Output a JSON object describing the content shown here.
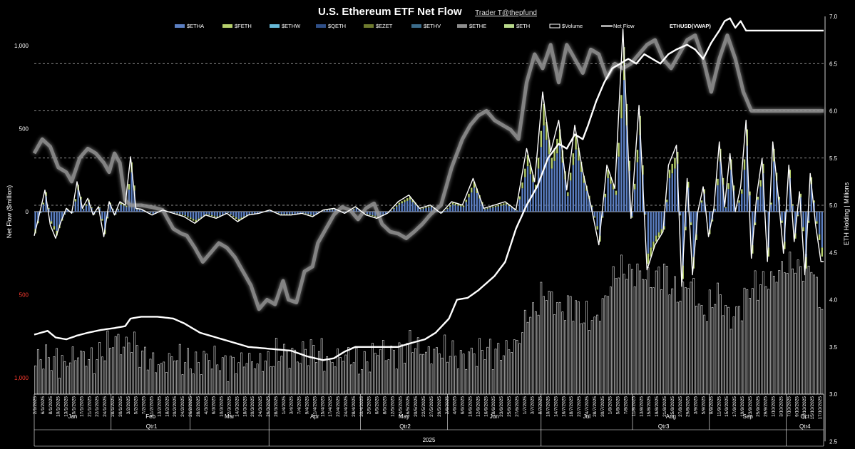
{
  "header": {
    "title": "U.S. Ethereum ETF Net Flow",
    "credit": "Trader T@thepfund"
  },
  "colors": {
    "background": "#000000",
    "etha": "#5b7fc2",
    "feth": "#b5cf6b",
    "ethw": "#66b8d6",
    "qeth": "#2f4f87",
    "ezet": "#6e7a2e",
    "ethv": "#3b6b8a",
    "ethe": "#8c8c8c",
    "eth": "#b8d88a",
    "volume": "#ffffff",
    "netflow": "#ffffff",
    "ethusd": "#aaaaaa"
  },
  "chart_data": {
    "type": "bar",
    "title": "U.S. Ethereum ETF Net Flow",
    "ylabel_left": "Net Flow ($million)",
    "ylabel_right": "ETH Holding | Millions",
    "left_ticks": [
      "1,000",
      "500",
      "0",
      "500",
      "1,000"
    ],
    "left_tick_values": [
      1000,
      500,
      0,
      -500,
      -1000
    ],
    "left_ylim": [
      -1000,
      1000
    ],
    "right_ticks": [
      "7.0",
      "6.5",
      "6.0",
      "5.5",
      "5.0",
      "4.5",
      "4.0",
      "3.5",
      "3.0",
      "2.5"
    ],
    "right_tick_values": [
      7.0,
      6.5,
      6.0,
      5.5,
      5.0,
      4.5,
      4.0,
      3.5,
      3.0,
      2.5
    ],
    "right_ylim": [
      2.5,
      7.0
    ],
    "legend_position": "top",
    "legend": [
      {
        "name": "$ETHA",
        "kind": "bar",
        "color": "#5b7fc2"
      },
      {
        "name": "$FETH",
        "kind": "bar",
        "color": "#b5cf6b"
      },
      {
        "name": "$ETHW",
        "kind": "bar",
        "color": "#66b8d6"
      },
      {
        "name": "$QETH",
        "kind": "bar",
        "color": "#2f4f87"
      },
      {
        "name": "$EZET",
        "kind": "bar",
        "color": "#6e7a2e"
      },
      {
        "name": "$ETHV",
        "kind": "bar",
        "color": "#3b6b8a"
      },
      {
        "name": "$ETHE",
        "kind": "bar",
        "color": "#8c8c8c"
      },
      {
        "name": "$ETH",
        "kind": "bar",
        "color": "#b8d88a"
      },
      {
        "name": "$Volume",
        "kind": "box",
        "color": "#ffffff"
      },
      {
        "name": "Net Flow",
        "kind": "line",
        "color": "#ffffff"
      },
      {
        "name": "ETHUSD(VWAP)",
        "kind": "glow",
        "color": "#aaaaaa"
      }
    ],
    "x_tick_labels": [
      "2/1/2025",
      "6/1/2025",
      "8/1/2025",
      "10/1/2025",
      "13/1/2025",
      "15/1/2025",
      "17/1/2025",
      "21/1/2025",
      "22/1/2025",
      "24/1/2025",
      "28/1/2025",
      "30/1/2025",
      "3/2/2025",
      "5/2/2025",
      "7/2/2025",
      "11/2/2025",
      "13/2/2025",
      "18/2/2025",
      "20/2/2025",
      "24/2/2025",
      "26/2/2025",
      "28/2/2025",
      "4/3/2025",
      "6/3/2025",
      "10/3/2025",
      "12/3/2025",
      "14/3/2025",
      "18/3/2025",
      "20/3/2025",
      "24/3/2025",
      "26/3/2025",
      "28/3/2025",
      "1/4/2025",
      "3/4/2025",
      "7/4/2025",
      "9/4/2025",
      "11/4/2025",
      "15/4/2025",
      "17/4/2025",
      "22/4/2025",
      "24/4/2025",
      "28/4/2025",
      "30/4/2025",
      "2/5/2025",
      "6/5/2025",
      "8/5/2025",
      "12/5/2025",
      "14/5/2025",
      "16/5/2025",
      "20/5/2025",
      "22/5/2025",
      "27/5/2025",
      "29/5/2025",
      "2/6/2025",
      "4/6/2025",
      "6/6/2025",
      "10/6/2025",
      "12/6/2025",
      "16/6/2025",
      "18/6/2025",
      "23/6/2025",
      "25/6/2025",
      "27/6/2025",
      "1/7/2025",
      "3/7/2025",
      "8/7/2025",
      "10/7/2025",
      "14/7/2025",
      "16/7/2025",
      "18/7/2025",
      "22/7/2025",
      "24/7/2025",
      "28/7/2025",
      "30/7/2025",
      "1/8/2025",
      "5/8/2025",
      "7/8/2025",
      "11/8/2025",
      "13/8/2025",
      "15/8/2025",
      "19/8/2025",
      "21/8/2025",
      "25/8/2025",
      "27/8/2025",
      "29/8/2025",
      "3/9/2025",
      "5/9/2025",
      "9/9/2025",
      "11/9/2025",
      "15/9/2025",
      "17/9/2025",
      "19/9/2025",
      "23/9/2025",
      "25/9/2025",
      "29/9/2025",
      "1/10/2025",
      "3/10/2025",
      "7/10/2025",
      "9/10/2025",
      "13/10/2025",
      "15/10/2025",
      "17/10/2025"
    ],
    "months": [
      "Jan",
      "Feb",
      "Mar",
      "Apr",
      "May",
      "Jun",
      "Jul",
      "Aug",
      "Sep",
      "Oct"
    ],
    "quarters": [
      "Qtr1",
      "Qtr2",
      "Qtr3",
      "Qtr4"
    ],
    "year": "2025",
    "eth_usd_vwap_millions_axis": [
      [
        0,
        5.55
      ],
      [
        3,
        5.7
      ],
      [
        6,
        5.62
      ],
      [
        9,
        5.4
      ],
      [
        12,
        5.35
      ],
      [
        14,
        5.25
      ],
      [
        17,
        5.5
      ],
      [
        20,
        5.6
      ],
      [
        23,
        5.55
      ],
      [
        26,
        5.45
      ],
      [
        28,
        5.35
      ],
      [
        30,
        5.55
      ],
      [
        32,
        5.45
      ],
      [
        34,
        5.05
      ],
      [
        36,
        5.0
      ],
      [
        40,
        5.0
      ],
      [
        44,
        4.98
      ],
      [
        48,
        4.95
      ],
      [
        52,
        4.75
      ],
      [
        55,
        4.7
      ],
      [
        57,
        4.68
      ],
      [
        60,
        4.55
      ],
      [
        63,
        4.4
      ],
      [
        66,
        4.5
      ],
      [
        69,
        4.6
      ],
      [
        72,
        4.55
      ],
      [
        75,
        4.45
      ],
      [
        78,
        4.3
      ],
      [
        81,
        4.15
      ],
      [
        84,
        3.9
      ],
      [
        87,
        4.0
      ],
      [
        90,
        3.95
      ],
      [
        93,
        4.2
      ],
      [
        95,
        4.0
      ],
      [
        98,
        3.97
      ],
      [
        101,
        4.3
      ],
      [
        104,
        4.35
      ],
      [
        106,
        4.6
      ],
      [
        109,
        4.75
      ],
      [
        112,
        4.9
      ],
      [
        115,
        4.98
      ],
      [
        118,
        4.95
      ],
      [
        121,
        4.85
      ],
      [
        124,
        4.97
      ],
      [
        127,
        5.02
      ],
      [
        130,
        4.8
      ],
      [
        133,
        4.72
      ],
      [
        136,
        4.7
      ],
      [
        139,
        4.65
      ],
      [
        142,
        4.72
      ],
      [
        145,
        4.8
      ],
      [
        148,
        4.9
      ],
      [
        152,
        5.0
      ],
      [
        156,
        5.4
      ],
      [
        160,
        5.7
      ],
      [
        163,
        5.85
      ],
      [
        166,
        5.95
      ],
      [
        169,
        6.0
      ],
      [
        172,
        5.9
      ],
      [
        175,
        5.85
      ],
      [
        178,
        5.8
      ],
      [
        181,
        5.7
      ],
      [
        184,
        6.3
      ],
      [
        187,
        6.6
      ],
      [
        190,
        6.45
      ],
      [
        193,
        6.7
      ],
      [
        196,
        6.3
      ],
      [
        199,
        6.7
      ],
      [
        202,
        6.55
      ],
      [
        205,
        6.4
      ],
      [
        208,
        6.65
      ],
      [
        211,
        6.6
      ],
      [
        214,
        6.35
      ],
      [
        217,
        6.5
      ],
      [
        220,
        6.45
      ],
      [
        223,
        6.5
      ],
      [
        226,
        6.6
      ],
      [
        229,
        6.7
      ],
      [
        232,
        6.75
      ],
      [
        235,
        6.55
      ],
      [
        238,
        6.45
      ],
      [
        241,
        6.6
      ],
      [
        244,
        6.75
      ],
      [
        247,
        6.8
      ],
      [
        250,
        6.55
      ],
      [
        253,
        6.2
      ],
      [
        256,
        6.55
      ],
      [
        259,
        6.8
      ],
      [
        262,
        6.55
      ],
      [
        265,
        6.2
      ],
      [
        268,
        6.0
      ]
    ],
    "eth_holding_millions": [
      [
        0,
        3.63
      ],
      [
        5,
        3.67
      ],
      [
        8,
        3.6
      ],
      [
        12,
        3.58
      ],
      [
        16,
        3.62
      ],
      [
        20,
        3.65
      ],
      [
        25,
        3.68
      ],
      [
        30,
        3.7
      ],
      [
        34,
        3.72
      ],
      [
        36,
        3.8
      ],
      [
        40,
        3.82
      ],
      [
        46,
        3.82
      ],
      [
        52,
        3.8
      ],
      [
        56,
        3.75
      ],
      [
        62,
        3.65
      ],
      [
        68,
        3.6
      ],
      [
        74,
        3.55
      ],
      [
        80,
        3.5
      ],
      [
        88,
        3.48
      ],
      [
        96,
        3.46
      ],
      [
        102,
        3.4
      ],
      [
        108,
        3.36
      ],
      [
        112,
        3.38
      ],
      [
        116,
        3.45
      ],
      [
        120,
        3.5
      ],
      [
        128,
        3.5
      ],
      [
        136,
        3.5
      ],
      [
        142,
        3.55
      ],
      [
        146,
        3.58
      ],
      [
        150,
        3.65
      ],
      [
        155,
        3.8
      ],
      [
        158,
        4.0
      ],
      [
        162,
        4.02
      ],
      [
        166,
        4.1
      ],
      [
        170,
        4.2
      ],
      [
        172,
        4.25
      ],
      [
        176,
        4.4
      ],
      [
        180,
        4.75
      ],
      [
        184,
        5.0
      ],
      [
        188,
        5.2
      ],
      [
        192,
        5.5
      ],
      [
        196,
        5.65
      ],
      [
        199,
        5.6
      ],
      [
        202,
        5.75
      ],
      [
        205,
        5.7
      ],
      [
        207,
        5.85
      ],
      [
        210,
        6.1
      ],
      [
        213,
        6.3
      ],
      [
        216,
        6.45
      ],
      [
        219,
        6.5
      ],
      [
        222,
        6.55
      ],
      [
        225,
        6.5
      ],
      [
        228,
        6.6
      ],
      [
        231,
        6.55
      ],
      [
        234,
        6.5
      ],
      [
        237,
        6.6
      ],
      [
        240,
        6.65
      ],
      [
        244,
        6.7
      ],
      [
        247,
        6.65
      ],
      [
        250,
        6.55
      ],
      [
        253,
        6.72
      ],
      [
        256,
        6.85
      ],
      [
        258,
        6.95
      ],
      [
        260,
        6.98
      ],
      [
        262,
        6.88
      ],
      [
        264,
        6.95
      ],
      [
        266,
        6.85
      ]
    ],
    "net_flow_million": [
      [
        0,
        -145
      ],
      [
        2,
        -10
      ],
      [
        4,
        130
      ],
      [
        6,
        -80
      ],
      [
        8,
        -160
      ],
      [
        10,
        -60
      ],
      [
        12,
        20
      ],
      [
        14,
        -10
      ],
      [
        16,
        180
      ],
      [
        18,
        20
      ],
      [
        20,
        80
      ],
      [
        22,
        -20
      ],
      [
        24,
        30
      ],
      [
        26,
        -150
      ],
      [
        28,
        60
      ],
      [
        30,
        -20
      ],
      [
        32,
        60
      ],
      [
        34,
        40
      ],
      [
        36,
        330
      ],
      [
        38,
        20
      ],
      [
        40,
        15
      ],
      [
        44,
        -20
      ],
      [
        48,
        10
      ],
      [
        52,
        -10
      ],
      [
        56,
        -30
      ],
      [
        60,
        -70
      ],
      [
        64,
        -20
      ],
      [
        68,
        -40
      ],
      [
        72,
        -10
      ],
      [
        76,
        -60
      ],
      [
        80,
        -20
      ],
      [
        84,
        -10
      ],
      [
        88,
        10
      ],
      [
        92,
        -20
      ],
      [
        96,
        -20
      ],
      [
        100,
        -10
      ],
      [
        104,
        -30
      ],
      [
        108,
        10
      ],
      [
        112,
        20
      ],
      [
        116,
        -10
      ],
      [
        120,
        30
      ],
      [
        124,
        -20
      ],
      [
        128,
        -40
      ],
      [
        132,
        -10
      ],
      [
        136,
        60
      ],
      [
        140,
        100
      ],
      [
        144,
        20
      ],
      [
        148,
        40
      ],
      [
        152,
        -10
      ],
      [
        156,
        60
      ],
      [
        160,
        40
      ],
      [
        164,
        200
      ],
      [
        168,
        20
      ],
      [
        172,
        40
      ],
      [
        176,
        60
      ],
      [
        180,
        10
      ],
      [
        184,
        380
      ],
      [
        187,
        180
      ],
      [
        190,
        720
      ],
      [
        193,
        360
      ],
      [
        196,
        550
      ],
      [
        199,
        130
      ],
      [
        202,
        520
      ],
      [
        205,
        240
      ],
      [
        208,
        40
      ],
      [
        211,
        -200
      ],
      [
        214,
        280
      ],
      [
        217,
        140
      ],
      [
        220,
        1100
      ],
      [
        223,
        -40
      ],
      [
        226,
        640
      ],
      [
        229,
        -350
      ],
      [
        232,
        -200
      ],
      [
        235,
        -120
      ],
      [
        237,
        280
      ],
      [
        240,
        400
      ],
      [
        242,
        -450
      ],
      [
        244,
        200
      ],
      [
        246,
        -380
      ],
      [
        248,
        0
      ],
      [
        250,
        150
      ],
      [
        252,
        -150
      ],
      [
        254,
        20
      ],
      [
        256,
        420
      ],
      [
        258,
        30
      ],
      [
        260,
        350
      ],
      [
        262,
        0
      ],
      [
        264,
        150
      ],
      [
        266,
        550
      ],
      [
        268,
        -280
      ],
      [
        270,
        100
      ],
      [
        272,
        320
      ],
      [
        274,
        -300
      ],
      [
        276,
        420
      ],
      [
        278,
        100
      ],
      [
        280,
        -250
      ],
      [
        282,
        280
      ],
      [
        284,
        -180
      ],
      [
        286,
        120
      ],
      [
        288,
        -380
      ],
      [
        290,
        230
      ],
      [
        292,
        -80
      ],
      [
        294,
        -300
      ]
    ],
    "volume_axis_values": [
      [
        0,
        3.3
      ],
      [
        10,
        3.32
      ],
      [
        20,
        3.33
      ],
      [
        36,
        3.55
      ],
      [
        40,
        3.3
      ],
      [
        60,
        3.3
      ],
      [
        80,
        3.28
      ],
      [
        100,
        3.4
      ],
      [
        120,
        3.3
      ],
      [
        140,
        3.45
      ],
      [
        160,
        3.35
      ],
      [
        180,
        3.45
      ],
      [
        184,
        3.8
      ],
      [
        190,
        4.0
      ],
      [
        196,
        3.85
      ],
      [
        200,
        3.95
      ],
      [
        205,
        3.7
      ],
      [
        210,
        3.8
      ],
      [
        215,
        4.1
      ],
      [
        220,
        4.3
      ],
      [
        225,
        4.25
      ],
      [
        230,
        4.1
      ],
      [
        235,
        4.3
      ],
      [
        240,
        3.95
      ],
      [
        245,
        4.15
      ],
      [
        250,
        3.8
      ],
      [
        255,
        4.0
      ],
      [
        260,
        3.75
      ],
      [
        265,
        3.95
      ],
      [
        270,
        4.1
      ],
      [
        275,
        4.2
      ],
      [
        280,
        4.25
      ],
      [
        285,
        4.35
      ],
      [
        290,
        4.3
      ],
      [
        294,
        3.8
      ]
    ]
  }
}
